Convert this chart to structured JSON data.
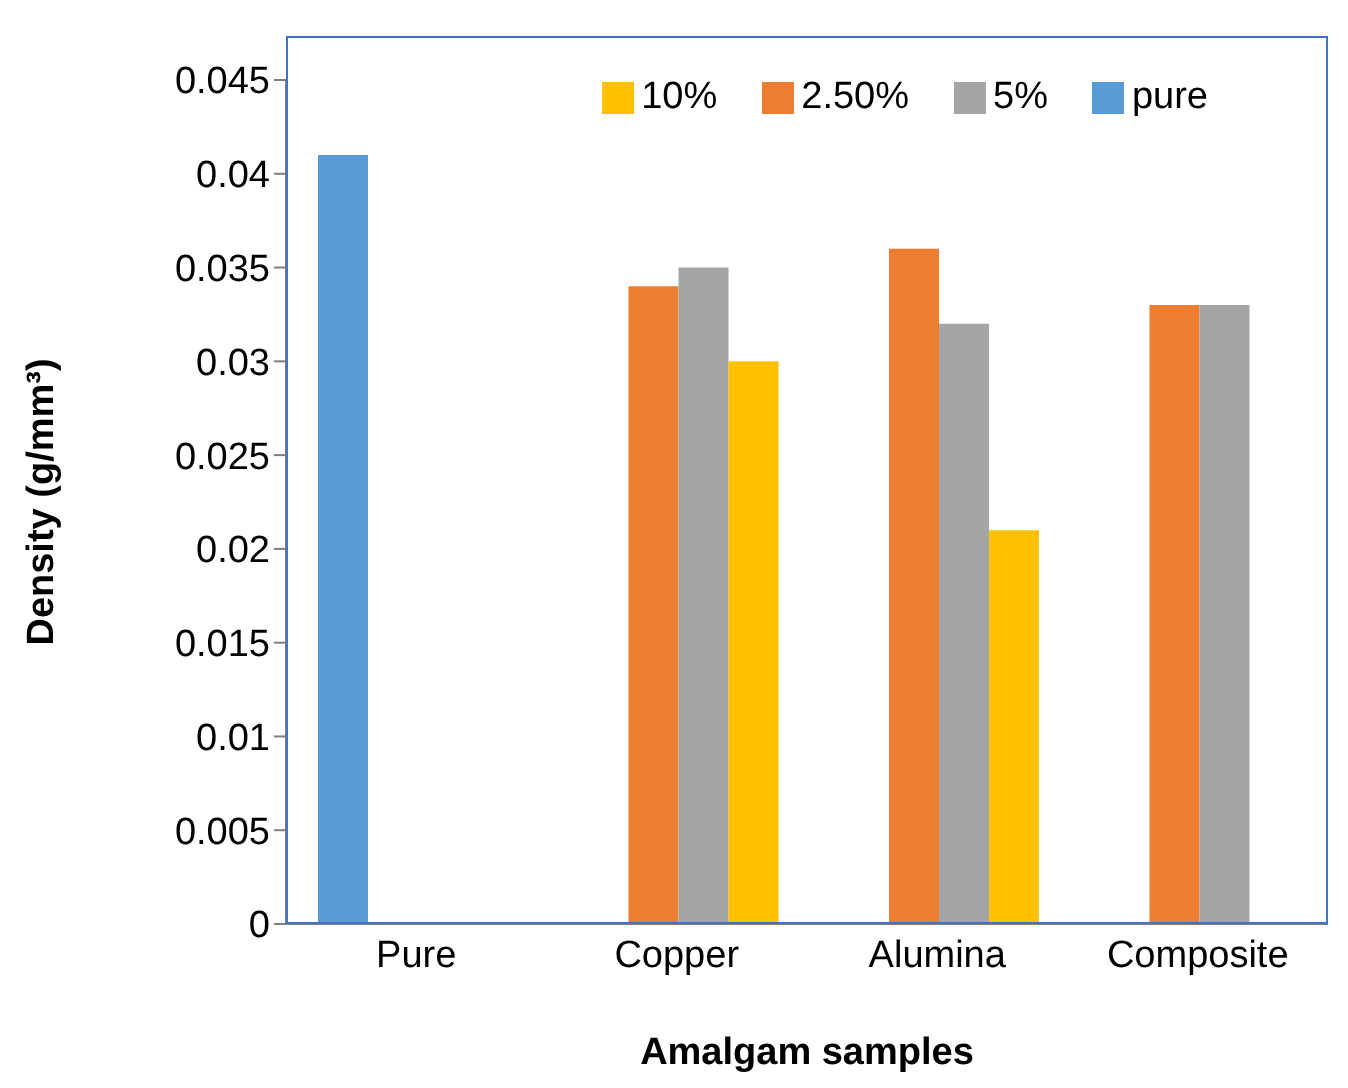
{
  "chart_data": {
    "type": "bar",
    "xlabel": "Amalgam samples",
    "ylabel": "Density (g/mm³)",
    "categories": [
      "Pure",
      "Copper",
      "Alumina",
      "Composite"
    ],
    "series": [
      {
        "name": "pure",
        "color": "#5b9bd5",
        "values": [
          0.041,
          null,
          null,
          null
        ]
      },
      {
        "name": "2.50%",
        "color": "#ed7d31",
        "values": [
          null,
          0.034,
          0.036,
          0.033
        ]
      },
      {
        "name": "5%",
        "color": "#a5a5a5",
        "values": [
          null,
          0.035,
          0.032,
          0.033
        ]
      },
      {
        "name": "10%",
        "color": "#ffc000",
        "values": [
          null,
          0.03,
          0.021,
          null
        ]
      }
    ],
    "ylim": [
      0,
      0.045
    ],
    "yticks": [
      0,
      0.005,
      0.01,
      0.015,
      0.02,
      0.025,
      0.03,
      0.035,
      0.04,
      0.045
    ],
    "grid": false,
    "legend": "top right"
  }
}
